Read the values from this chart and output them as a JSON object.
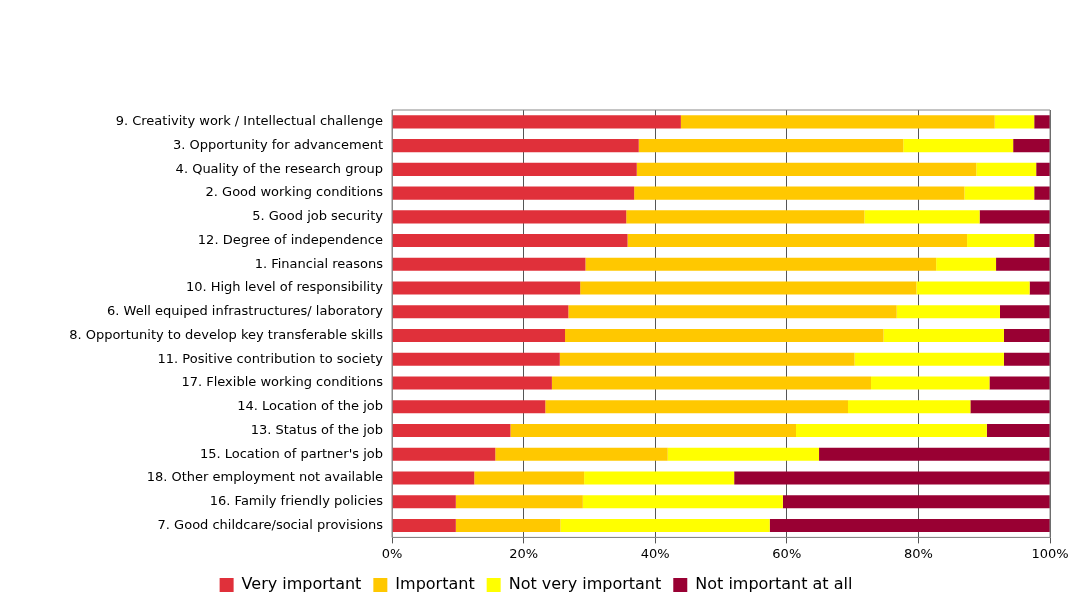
{
  "chart_data": {
    "type": "bar",
    "orientation": "horizontal",
    "stacked": true,
    "categories": [
      "9. Creativity work / Intellectual challenge",
      "3. Opportunity for advancement",
      "4. Quality of the research group",
      "2. Good working conditions",
      "5. Good job security",
      "12. Degree of independence",
      "1. Financial reasons",
      "10. High level of responsibility",
      "6. Well equiped infrastructures/ laboratory",
      "8. Opportunity to develop key transferable skills",
      "11. Positive contribution to society",
      "17. Flexible working conditions",
      "14. Location of the job",
      "13. Status of the job",
      "15. Location of partner's job",
      "18. Other employment not available",
      "16. Family friendly policies",
      "7. Good childcare/social provisions"
    ],
    "series": [
      {
        "name": "Very important",
        "color": "#e0303a",
        "values": [
          43.9,
          37.5,
          37.2,
          36.8,
          35.6,
          35.8,
          29.4,
          28.6,
          26.8,
          26.3,
          25.5,
          24.3,
          23.3,
          18.0,
          15.7,
          12.5,
          9.7,
          9.7
        ]
      },
      {
        "name": "Important",
        "color": "#ffc800",
        "values": [
          47.7,
          40.2,
          51.6,
          50.2,
          36.2,
          51.6,
          53.3,
          51.1,
          49.9,
          48.4,
          44.8,
          48.5,
          46.0,
          43.4,
          26.2,
          16.7,
          19.3,
          15.9
        ]
      },
      {
        "name": "Not very important",
        "color": "#ffff00",
        "values": [
          6.0,
          16.7,
          9.1,
          10.6,
          17.5,
          10.2,
          9.1,
          17.2,
          15.7,
          18.3,
          22.7,
          18.0,
          18.6,
          29.0,
          23.0,
          22.8,
          30.4,
          31.8
        ]
      },
      {
        "name": "Not important at all",
        "color": "#990033",
        "values": [
          2.4,
          5.6,
          2.1,
          2.4,
          10.7,
          2.4,
          8.2,
          3.1,
          7.6,
          7.0,
          7.0,
          9.2,
          12.1,
          9.6,
          35.1,
          48.0,
          40.6,
          42.6
        ]
      }
    ],
    "xlim": [
      0,
      100
    ],
    "xticks": [
      {
        "value": 0,
        "label": "0%"
      },
      {
        "value": 20,
        "label": "20%"
      },
      {
        "value": 40,
        "label": "40%"
      },
      {
        "value": 60,
        "label": "60%"
      },
      {
        "value": 80,
        "label": "80%"
      },
      {
        "value": 100,
        "label": "100%"
      }
    ],
    "grid": "x",
    "legend": "bottom"
  }
}
